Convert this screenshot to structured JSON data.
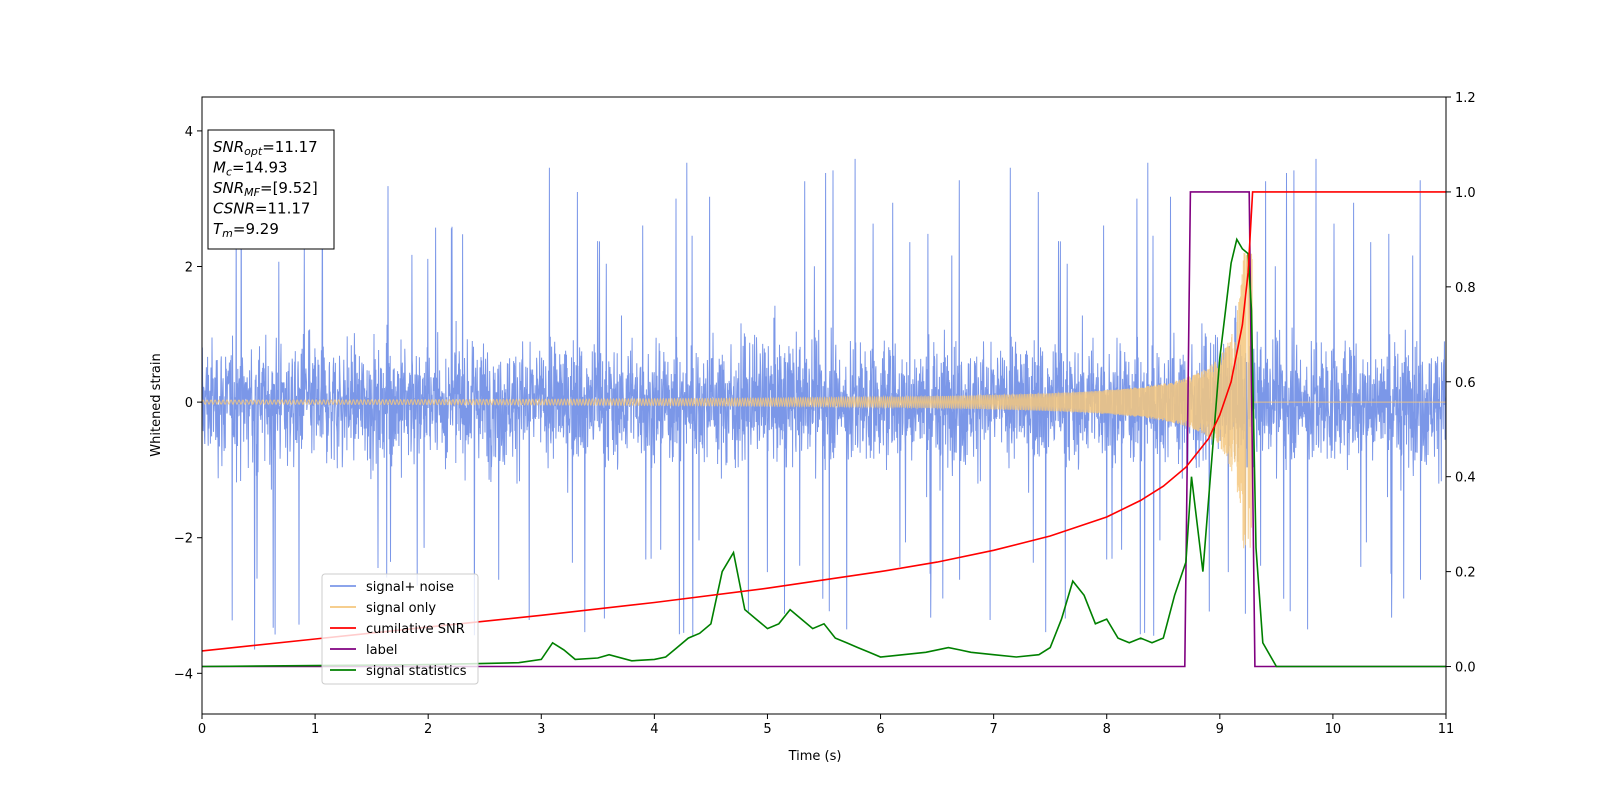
{
  "chart_data": {
    "type": "line",
    "xlabel": "Time (s)",
    "ylabel": "Whitened strain",
    "xlim": [
      0,
      11
    ],
    "ylim": [
      -4.6,
      4.5
    ],
    "y2lim": [
      -0.1,
      1.2
    ],
    "xticks": [
      "0",
      "1",
      "2",
      "3",
      "4",
      "5",
      "6",
      "7",
      "8",
      "9",
      "10",
      "11"
    ],
    "xtick_values": [
      0,
      1,
      2,
      3,
      4,
      5,
      6,
      7,
      8,
      9,
      10,
      11
    ],
    "yticks": [
      "−4",
      "−2",
      "0",
      "2",
      "4"
    ],
    "ytick_values": [
      -4,
      -2,
      0,
      2,
      4
    ],
    "y2ticks": [
      "0.0",
      "0.2",
      "0.4",
      "0.6",
      "0.8",
      "1.0",
      "1.2"
    ],
    "y2tick_values": [
      0,
      0.2,
      0.4,
      0.6,
      0.8,
      1.0,
      1.2
    ],
    "legend_placement": "lower-left",
    "legend": [
      {
        "label": "signal+ noise",
        "color": "#7b97e8"
      },
      {
        "label": "signal only",
        "color": "#f5c77e"
      },
      {
        "label": "cumilative SNR",
        "color": "#ff0000"
      },
      {
        "label": "label",
        "color": "#800080"
      },
      {
        "label": "signal statistics",
        "color": "#008000"
      }
    ],
    "info_box": [
      {
        "base": "SNR",
        "sub": "opt",
        "value": "=11.17"
      },
      {
        "base": "M",
        "sub": "c",
        "value": "=14.93"
      },
      {
        "base": "SNR",
        "sub": "MF",
        "value": "=[9.52]"
      },
      {
        "base": "CSNR",
        "sub": "",
        "value": "=11.17"
      },
      {
        "base": "T",
        "sub": "m",
        "value": "=9.29"
      }
    ],
    "series": [
      {
        "name": "signal+ noise",
        "axis": "left",
        "color": "#7b97e8",
        "kind": "noise",
        "x_range": [
          0,
          11
        ],
        "band": [
          -1.6,
          1.6
        ],
        "spike_max": 4.1,
        "spike_min": -4.15
      },
      {
        "name": "signal only",
        "axis": "left",
        "color": "#f5c77e",
        "kind": "chirp",
        "x_range": [
          0,
          9.29
        ],
        "amplitude_start": 0.03,
        "amplitude_end": 2.2,
        "after_merger": 0
      },
      {
        "name": "cumilative SNR",
        "axis": "right",
        "color": "#ff0000",
        "x": [
          0,
          1,
          2,
          3,
          4,
          5,
          6,
          6.5,
          7,
          7.5,
          8,
          8.3,
          8.5,
          8.7,
          8.9,
          9.0,
          9.1,
          9.2,
          9.25,
          9.29,
          11
        ],
        "y": [
          0.033,
          0.058,
          0.083,
          0.108,
          0.135,
          0.165,
          0.2,
          0.22,
          0.245,
          0.275,
          0.315,
          0.35,
          0.38,
          0.42,
          0.48,
          0.53,
          0.6,
          0.72,
          0.83,
          1.0,
          1.0
        ]
      },
      {
        "name": "label",
        "axis": "right",
        "color": "#800080",
        "x": [
          0,
          8.69,
          8.74,
          9.26,
          9.31,
          11
        ],
        "y": [
          0,
          0,
          1,
          1,
          0,
          0
        ]
      },
      {
        "name": "signal statistics",
        "axis": "right",
        "color": "#008000",
        "x": [
          0,
          1,
          2,
          2.4,
          2.8,
          3.0,
          3.1,
          3.2,
          3.3,
          3.5,
          3.6,
          3.8,
          4.0,
          4.1,
          4.2,
          4.3,
          4.4,
          4.5,
          4.6,
          4.7,
          4.8,
          4.9,
          5.0,
          5.1,
          5.2,
          5.3,
          5.4,
          5.5,
          5.6,
          5.7,
          5.8,
          5.9,
          6.0,
          6.2,
          6.4,
          6.6,
          6.7,
          6.8,
          7.0,
          7.2,
          7.4,
          7.5,
          7.6,
          7.7,
          7.8,
          7.9,
          8.0,
          8.1,
          8.2,
          8.3,
          8.4,
          8.5,
          8.6,
          8.7,
          8.75,
          8.8,
          8.85,
          8.9,
          8.95,
          9.0,
          9.05,
          9.1,
          9.15,
          9.2,
          9.25,
          9.28,
          9.32,
          9.38,
          9.5,
          10,
          11
        ],
        "y": [
          0,
          0.002,
          0.004,
          0.006,
          0.008,
          0.015,
          0.05,
          0.035,
          0.015,
          0.018,
          0.025,
          0.012,
          0.015,
          0.02,
          0.04,
          0.06,
          0.07,
          0.09,
          0.2,
          0.24,
          0.12,
          0.1,
          0.08,
          0.09,
          0.12,
          0.1,
          0.08,
          0.09,
          0.06,
          0.05,
          0.04,
          0.03,
          0.02,
          0.025,
          0.03,
          0.04,
          0.035,
          0.03,
          0.025,
          0.02,
          0.025,
          0.04,
          0.1,
          0.18,
          0.15,
          0.09,
          0.1,
          0.06,
          0.05,
          0.06,
          0.05,
          0.06,
          0.15,
          0.22,
          0.4,
          0.3,
          0.2,
          0.35,
          0.5,
          0.65,
          0.75,
          0.85,
          0.9,
          0.88,
          0.87,
          0.75,
          0.25,
          0.05,
          0.0,
          0.0,
          0.0
        ]
      }
    ]
  }
}
